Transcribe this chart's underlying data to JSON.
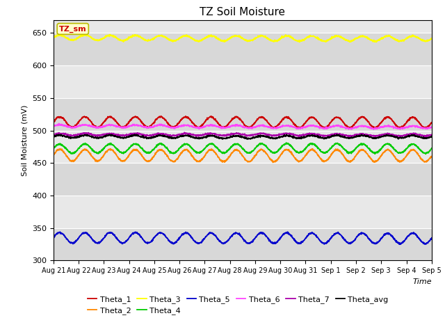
{
  "title": "TZ Soil Moisture",
  "xlabel": "Time",
  "ylabel": "Soil Moisture (mV)",
  "ylim": [
    300,
    670
  ],
  "background_color": "#e8e8e8",
  "annotation_text": "TZ_sm",
  "annotation_color": "#cc0000",
  "annotation_bg": "#ffffcc",
  "annotation_edge": "#bbbb00",
  "series_order": [
    "Theta_1",
    "Theta_2",
    "Theta_3",
    "Theta_4",
    "Theta_5",
    "Theta_6",
    "Theta_7",
    "Theta_avg"
  ],
  "series": {
    "Theta_1": {
      "color": "#cc0000",
      "base": 513,
      "amplitude": 8,
      "period": 1.0,
      "trend": -0.15
    },
    "Theta_2": {
      "color": "#ff8800",
      "base": 462,
      "amplitude": 9,
      "period": 1.0,
      "trend": -0.1
    },
    "Theta_3": {
      "color": "#ffff00",
      "base": 643,
      "amplitude": 4,
      "period": 1.0,
      "trend": -0.2
    },
    "Theta_4": {
      "color": "#00cc00",
      "base": 472,
      "amplitude": 7,
      "period": 1.0,
      "trend": -0.05
    },
    "Theta_5": {
      "color": "#0000cc",
      "base": 335,
      "amplitude": 8,
      "period": 1.0,
      "trend": -0.1
    },
    "Theta_6": {
      "color": "#ff44ff",
      "base": 507,
      "amplitude": 2,
      "period": 1.0,
      "trend": -0.15
    },
    "Theta_7": {
      "color": "#aa00aa",
      "base": 494,
      "amplitude": 1.5,
      "period": 1.0,
      "trend": 0.0
    },
    "Theta_avg": {
      "color": "#000000",
      "base": 491,
      "amplitude": 2,
      "period": 1.0,
      "trend": -0.1
    }
  },
  "tick_labels": [
    "Aug 21",
    "Aug 22",
    "Aug 23",
    "Aug 24",
    "Aug 25",
    "Aug 26",
    "Aug 27",
    "Aug 28",
    "Aug 29",
    "Aug 30",
    "Aug 31",
    "Sep 1",
    "Sep 2",
    "Sep 3",
    "Sep 4",
    "Sep 5"
  ],
  "yticks": [
    300,
    350,
    400,
    450,
    500,
    550,
    600,
    650
  ],
  "legend_row1": [
    "Theta_1",
    "Theta_2",
    "Theta_3",
    "Theta_4",
    "Theta_5",
    "Theta_6"
  ],
  "legend_row2": [
    "Theta_7",
    "Theta_avg"
  ]
}
